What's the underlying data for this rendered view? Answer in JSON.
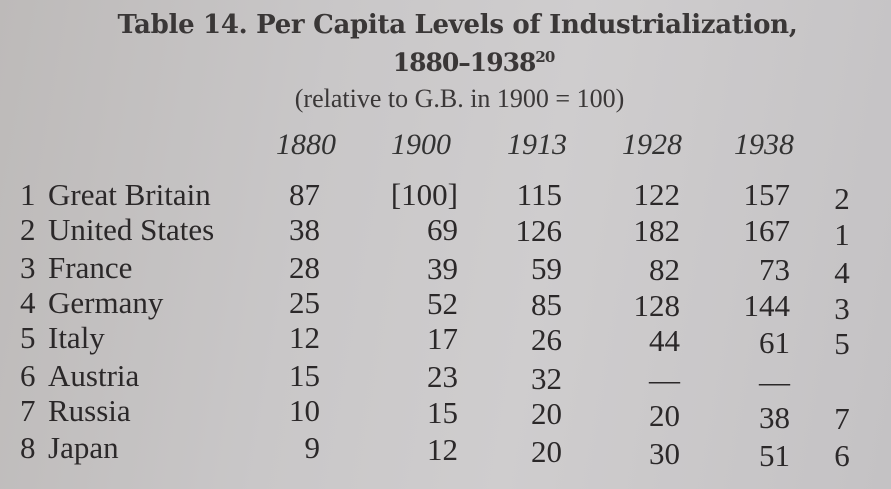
{
  "title": {
    "line1": "Table 14. Per Capita Levels of Industrialization,",
    "line2": "1880–1938",
    "footnote_ref": "20",
    "subtitle": "(relative to G.B. in 1900 = 100)"
  },
  "columns": [
    "1880",
    "1900",
    "1913",
    "1928",
    "1938"
  ],
  "rows": [
    {
      "rank": "1",
      "country": "Great Britain",
      "values": [
        "87",
        "[100]",
        "115",
        "122",
        "157"
      ],
      "rank_1938": "2"
    },
    {
      "rank": "2",
      "country": "United States",
      "values": [
        "38",
        "69",
        "126",
        "182",
        "167"
      ],
      "rank_1938": "1"
    },
    {
      "rank": "3",
      "country": "France",
      "values": [
        "28",
        "39",
        "59",
        "82",
        "73"
      ],
      "rank_1938": "4"
    },
    {
      "rank": "4",
      "country": "Germany",
      "values": [
        "25",
        "52",
        "85",
        "128",
        "144"
      ],
      "rank_1938": "3"
    },
    {
      "rank": "5",
      "country": "Italy",
      "values": [
        "12",
        "17",
        "26",
        "44",
        "61"
      ],
      "rank_1938": "5"
    },
    {
      "rank": "6",
      "country": "Austria",
      "values": [
        "15",
        "23",
        "32",
        "—",
        "—"
      ],
      "rank_1938": ""
    },
    {
      "rank": "7",
      "country": "Russia",
      "values": [
        "10",
        "15",
        "20",
        "20",
        "38"
      ],
      "rank_1938": "7"
    },
    {
      "rank": "8",
      "country": "Japan",
      "values": [
        "9",
        "12",
        "20",
        "30",
        "51"
      ],
      "rank_1938": "6"
    }
  ]
}
